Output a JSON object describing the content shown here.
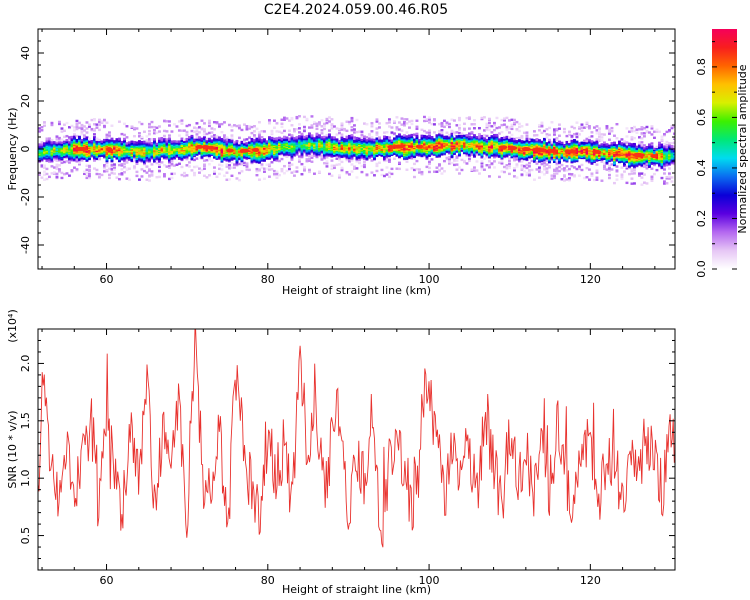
{
  "figure_title": "C2E4.2024.059.00.46.R05",
  "colors": {
    "snr_line": "#e8322e",
    "colormap": [
      "#ffffff",
      "#e6c6f5",
      "#b468f0",
      "#5a00e0",
      "#0a00d8",
      "#0a6cf0",
      "#00dcf0",
      "#00e878",
      "#3cf000",
      "#d8f000",
      "#ffc000",
      "#ff6400",
      "#f81e1e",
      "#f5005a"
    ]
  },
  "chart_data": [
    {
      "type": "heatmap",
      "title": "",
      "xlabel": "Height of straight line (km)",
      "ylabel": "Frequency (Hz)",
      "xlim": [
        51.5,
        130.5
      ],
      "ylim": [
        -50,
        50
      ],
      "xticks": [
        60,
        80,
        100,
        120
      ],
      "yticks": [
        40,
        20,
        0,
        -20,
        -40
      ],
      "ridge": {
        "description_of_values": "center frequency (Hz) of the signal band versus height (km)",
        "x": [
          51.5,
          56,
          60,
          64,
          68,
          72,
          76,
          80,
          84,
          88,
          92,
          96,
          100,
          104,
          108,
          112,
          116,
          120,
          124,
          128,
          130.5
        ],
        "center": [
          -1,
          0,
          0,
          -1,
          0,
          1,
          -1,
          0,
          2,
          1,
          0,
          1,
          1,
          2,
          1,
          0,
          -1,
          -1,
          -2,
          -3,
          -2
        ],
        "peak_amplitude": [
          0.55,
          0.85,
          0.9,
          0.7,
          0.75,
          0.9,
          0.85,
          0.8,
          0.6,
          0.75,
          0.8,
          0.85,
          0.95,
          0.9,
          0.85,
          0.9,
          0.95,
          0.95,
          0.9,
          0.85,
          0.5
        ]
      },
      "colorbar": {
        "label": "Normalized spectral amplitude",
        "range": [
          0,
          0.95
        ],
        "ticks": [
          0.0,
          0.2,
          0.4,
          0.6,
          0.8
        ]
      }
    },
    {
      "type": "line",
      "title": "",
      "xlabel": "Height of straight line (km)",
      "ylabel": "SNR (10 * v/v)",
      "scale_label": "(x10⁴)",
      "xlim": [
        51.5,
        130.5
      ],
      "ylim": [
        0.2,
        2.3
      ],
      "xticks": [
        60,
        80,
        100,
        120
      ],
      "yticks": [
        0.5,
        1.0,
        1.5,
        2.0
      ],
      "series": [
        {
          "x": [
            51.5,
            52,
            53,
            54,
            55,
            56,
            57,
            58,
            59,
            60,
            61,
            62,
            63,
            64,
            65,
            66,
            67,
            68,
            69,
            70,
            71,
            72,
            73,
            74,
            75,
            76,
            77,
            78,
            79,
            80,
            81,
            82,
            83,
            84,
            85,
            86,
            87,
            88,
            89,
            90,
            91,
            92,
            93,
            94,
            95,
            96,
            97,
            98,
            99,
            100,
            101,
            102,
            103,
            104,
            105,
            106,
            107,
            108,
            109,
            110,
            111,
            112,
            113,
            114,
            115,
            116,
            117,
            118,
            119,
            120,
            121,
            122,
            123,
            124,
            125,
            126,
            127,
            128,
            129,
            130,
            130.5
          ],
          "y": [
            0.9,
            1.9,
            1.1,
            0.8,
            1.3,
            0.7,
            1.2,
            1.5,
            0.9,
            1.4,
            1.1,
            0.7,
            1.6,
            0.9,
            1.8,
            0.8,
            1.4,
            1.0,
            1.7,
            0.6,
            2.2,
            1.0,
            0.8,
            1.5,
            0.5,
            1.9,
            1.2,
            0.9,
            0.6,
            1.4,
            1.0,
            1.3,
            0.7,
            2.1,
            1.1,
            1.6,
            0.9,
            1.3,
            1.7,
            0.5,
            1.2,
            0.9,
            1.6,
            0.4,
            1.1,
            1.3,
            1.0,
            0.8,
            1.5,
            1.9,
            1.2,
            0.9,
            1.4,
            1.0,
            1.3,
            0.8,
            1.6,
            1.1,
            0.7,
            1.4,
            1.0,
            1.2,
            0.8,
            1.3,
            0.9,
            1.5,
            1.0,
            0.7,
            1.3,
            1.4,
            0.8,
            1.1,
            1.2,
            0.7,
            1.3,
            1.0,
            1.4,
            1.1,
            0.9,
            1.5,
            1.2
          ]
        }
      ]
    }
  ]
}
